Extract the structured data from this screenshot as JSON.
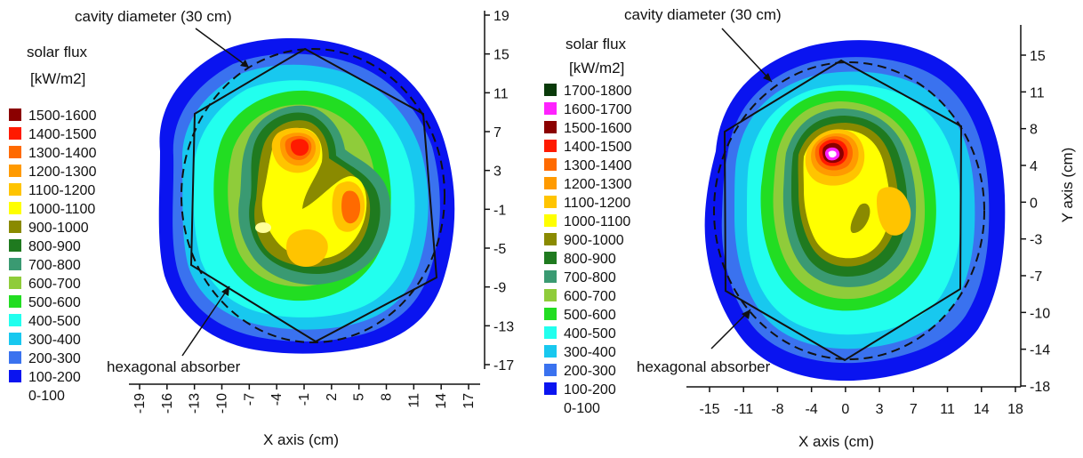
{
  "chart_data": [
    {
      "type": "heatmap",
      "legend_title": [
        "solar flux",
        "[kW/m2]"
      ],
      "legend_entries": [
        "1500-1600",
        "1400-1500",
        "1300-1400",
        "1200-1300",
        "1100-1200",
        "1000-1100",
        "900-1000",
        "800-900",
        "700-800",
        "600-700",
        "500-600",
        "400-500",
        "300-400",
        "200-300",
        "100-200",
        "0-100"
      ],
      "legend_colors": [
        "#8b0000",
        "#ff1a00",
        "#ff6a00",
        "#ff9a00",
        "#ffc400",
        "#ffff00",
        "#8a8a00",
        "#1f7a1f",
        "#3a9a72",
        "#8fcc3a",
        "#22dd22",
        "#22ffee",
        "#18c8ef",
        "#3a72ef",
        "#0a14f0",
        "#ffffff"
      ],
      "xlabel": "X axis (cm)",
      "x_ticks": [
        "-19",
        "-16",
        "-13",
        "-10",
        "-7",
        "-4",
        "-1",
        "2",
        "5",
        "8",
        "11",
        "14",
        "17"
      ],
      "y_ticks": [
        "19",
        "15",
        "11",
        "7",
        "3",
        "-1",
        "-5",
        "-9",
        "-13",
        "-17"
      ],
      "annotations": [
        "cavity diameter (30 cm)",
        "hexagonal absorber"
      ]
    },
    {
      "type": "heatmap",
      "legend_title": [
        "solar flux",
        "[kW/m2]"
      ],
      "legend_entries": [
        "1700-1800",
        "1600-1700",
        "1500-1600",
        "1400-1500",
        "1300-1400",
        "1200-1300",
        "1100-1200",
        "1000-1100",
        "900-1000",
        "800-900",
        "700-800",
        "600-700",
        "500-600",
        "400-500",
        "300-400",
        "200-300",
        "100-200",
        "0-100"
      ],
      "legend_colors": [
        "#0a3a0a",
        "#ff22ff",
        "#8b0000",
        "#ff1a00",
        "#ff6a00",
        "#ff9a00",
        "#ffc400",
        "#ffff00",
        "#8a8a00",
        "#1f7a1f",
        "#3a9a72",
        "#8fcc3a",
        "#22dd22",
        "#22ffee",
        "#18c8ef",
        "#3a72ef",
        "#0a14f0",
        "#ffffff"
      ],
      "xlabel": "X axis (cm)",
      "ylabel": "Y axis (cm)",
      "x_ticks": [
        "-15",
        "-11",
        "-8",
        "-4",
        "0",
        "3",
        "7",
        "11",
        "14",
        "18"
      ],
      "y_ticks": [
        "15",
        "11",
        "8",
        "4",
        "0",
        "-3",
        "-7",
        "-10",
        "-14",
        "-18"
      ],
      "annotations": [
        "cavity diameter (30 cm)",
        "hexagonal absorber"
      ]
    }
  ]
}
